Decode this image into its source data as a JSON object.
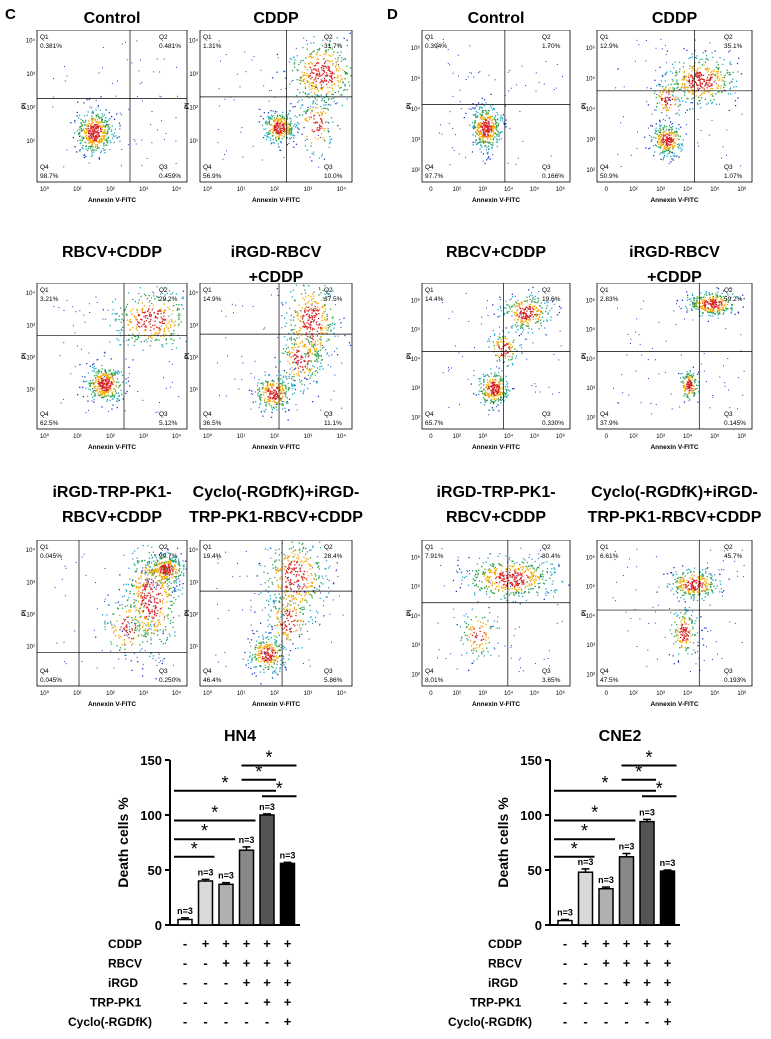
{
  "panel_letters": [
    "C",
    "D"
  ],
  "flow_axes": {
    "xlabel": "Annexin V-FITC",
    "ylabel": "PI"
  },
  "quadrant_labels": [
    "Q1",
    "Q2",
    "Q3",
    "Q4"
  ],
  "ticks_C": [
    "10⁰",
    "10¹",
    "10²",
    "10³",
    "10⁴"
  ],
  "ticks_D": [
    "0",
    "10²",
    "10³",
    "10⁴",
    "10⁵",
    "10⁶"
  ],
  "flow_panels": [
    {
      "title": [
        "Control"
      ],
      "q1": "0.381%",
      "q2": "0.481%",
      "q3": "0.459%",
      "q4": "98.7%"
    },
    {
      "title": [
        "CDDP"
      ],
      "q1": "1.31%",
      "q2": "31.7%",
      "q3": "10.0%",
      "q4": "56.9%"
    },
    {
      "title": [
        "Control"
      ],
      "q1": "0.394%",
      "q2": "1.70%",
      "q3": "0.166%",
      "q4": "97.7%"
    },
    {
      "title": [
        "CDDP"
      ],
      "q1": "12.9%",
      "q2": "35.1%",
      "q3": "1.07%",
      "q4": "50.9%"
    },
    {
      "title": [
        "RBCV+CDDP"
      ],
      "q1": "3.21%",
      "q2": "29.2%",
      "q3": "5.12%",
      "q4": "62.5%"
    },
    {
      "title": [
        "iRGD-RBCV",
        "+CDDP"
      ],
      "q1": "14.9%",
      "q2": "37.5%",
      "q3": "11.1%",
      "q4": "36.5%"
    },
    {
      "title": [
        "RBCV+CDDP"
      ],
      "q1": "14.4%",
      "q2": "19.6%",
      "q3": "0.330%",
      "q4": "65.7%"
    },
    {
      "title": [
        "iRGD-RBCV",
        "+CDDP"
      ],
      "q1": "2.83%",
      "q2": "59.2%",
      "q3": "0.145%",
      "q4": "37.9%"
    },
    {
      "title": [
        "iRGD-TRP-PK1-",
        "RBCV+CDDP"
      ],
      "q1": "0.045%",
      "q2": "99.7%",
      "q3": "0.250%",
      "q4": "0.045%"
    },
    {
      "title": [
        "Cyclo(-RGDfK)+iRGD-",
        "TRP-PK1-RBCV+CDDP"
      ],
      "q1": "19.4%",
      "q2": "28.4%",
      "q3": "5.86%",
      "q4": "46.4%"
    },
    {
      "title": [
        "iRGD-TRP-PK1-",
        "RBCV+CDDP"
      ],
      "q1": "7.91%",
      "q2": "80.4%",
      "q3": "3.65%",
      "q4": "8.01%"
    },
    {
      "title": [
        "Cyclo(-RGDfK)+iRGD-",
        "TRP-PK1-RBCV+CDDP"
      ],
      "q1": "6.61%",
      "q2": "45.7%",
      "q3": "0.193%",
      "q4": "47.5%"
    }
  ],
  "chart_data": [
    {
      "type": "bar",
      "title": "HN4",
      "ylabel": "Death cells %",
      "ylim": [
        0,
        150
      ],
      "yticks": [
        "0",
        "50",
        "100",
        "150"
      ],
      "values": [
        5,
        40,
        37,
        68,
        100,
        56
      ],
      "errors": [
        1.5,
        1.5,
        1.5,
        3,
        1,
        1
      ],
      "n_labels": [
        "n=3",
        "n=3",
        "n=3",
        "n=3",
        "n=3",
        "n=3"
      ],
      "bar_colors": [
        "#ffffff",
        "#d9d9d9",
        "#b0b0b0",
        "#888888",
        "#555555",
        "#000000"
      ],
      "significance_marker": "*",
      "treatment_rows": [
        {
          "name": "CDDP",
          "signs": [
            "-",
            "+",
            "+",
            "+",
            "+",
            "+"
          ]
        },
        {
          "name": "RBCV",
          "signs": [
            "-",
            "-",
            "+",
            "+",
            "+",
            "+"
          ]
        },
        {
          "name": "iRGD",
          "signs": [
            "-",
            "-",
            "-",
            "+",
            "+",
            "+"
          ]
        },
        {
          "name": "TRP-PK1",
          "signs": [
            "-",
            "-",
            "-",
            "-",
            "+",
            "+"
          ]
        },
        {
          "name": "Cyclo(-RGDfK)",
          "signs": [
            "-",
            "-",
            "-",
            "-",
            "-",
            "+"
          ]
        }
      ]
    },
    {
      "type": "bar",
      "title": "CNE2",
      "ylabel": "Death cells %",
      "ylim": [
        0,
        150
      ],
      "yticks": [
        "0",
        "50",
        "100",
        "150"
      ],
      "values": [
        4,
        48,
        33,
        62,
        94,
        49
      ],
      "errors": [
        1,
        3,
        1.5,
        3,
        2,
        1
      ],
      "n_labels": [
        "n=3",
        "n=3",
        "n=3",
        "n=3",
        "n=3",
        "n=3"
      ],
      "bar_colors": [
        "#ffffff",
        "#d9d9d9",
        "#b0b0b0",
        "#888888",
        "#555555",
        "#000000"
      ],
      "significance_marker": "*",
      "treatment_rows": [
        {
          "name": "CDDP",
          "signs": [
            "-",
            "+",
            "+",
            "+",
            "+",
            "+"
          ]
        },
        {
          "name": "RBCV",
          "signs": [
            "-",
            "-",
            "+",
            "+",
            "+",
            "+"
          ]
        },
        {
          "name": "iRGD",
          "signs": [
            "-",
            "-",
            "-",
            "+",
            "+",
            "+"
          ]
        },
        {
          "name": "TRP-PK1",
          "signs": [
            "-",
            "-",
            "-",
            "-",
            "+",
            "+"
          ]
        },
        {
          "name": "Cyclo(-RGDfK)",
          "signs": [
            "-",
            "-",
            "-",
            "-",
            "-",
            "+"
          ]
        }
      ]
    }
  ]
}
